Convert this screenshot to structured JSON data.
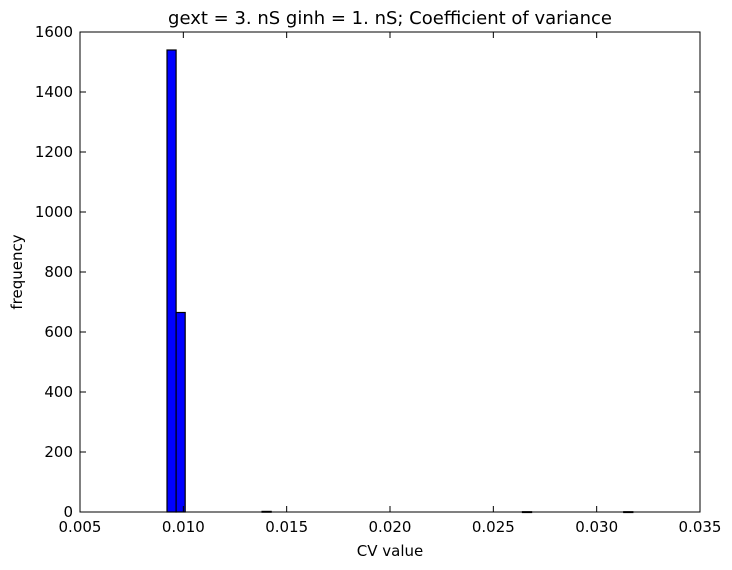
{
  "chart_data": {
    "type": "bar",
    "title": "gext = 3. nS ginh = 1. nS; Coefficient of variance",
    "xlabel": "CV value",
    "ylabel": "frequency",
    "xlim": [
      0.005,
      0.035
    ],
    "ylim": [
      0,
      1600
    ],
    "xticks": [
      0.005,
      0.01,
      0.015,
      0.02,
      0.025,
      0.03,
      0.035
    ],
    "xtick_labels": [
      "0.005",
      "0.010",
      "0.015",
      "0.020",
      "0.025",
      "0.030",
      "0.035"
    ],
    "yticks": [
      0,
      200,
      400,
      600,
      800,
      1000,
      1200,
      1400,
      1600
    ],
    "ytick_labels": [
      "0",
      "200",
      "400",
      "600",
      "800",
      "1000",
      "1200",
      "1400",
      "1600"
    ],
    "grid": false,
    "bar_color": "#0000ff",
    "bins": [
      {
        "x0": 0.00921,
        "x1": 0.00965,
        "count": 1540
      },
      {
        "x0": 0.00965,
        "x1": 0.01009,
        "count": 665
      },
      {
        "x0": 0.01381,
        "x1": 0.01425,
        "count": 2
      },
      {
        "x0": 0.02641,
        "x1": 0.02685,
        "count": 1
      },
      {
        "x0": 0.03131,
        "x1": 0.03175,
        "count": 1
      }
    ]
  }
}
